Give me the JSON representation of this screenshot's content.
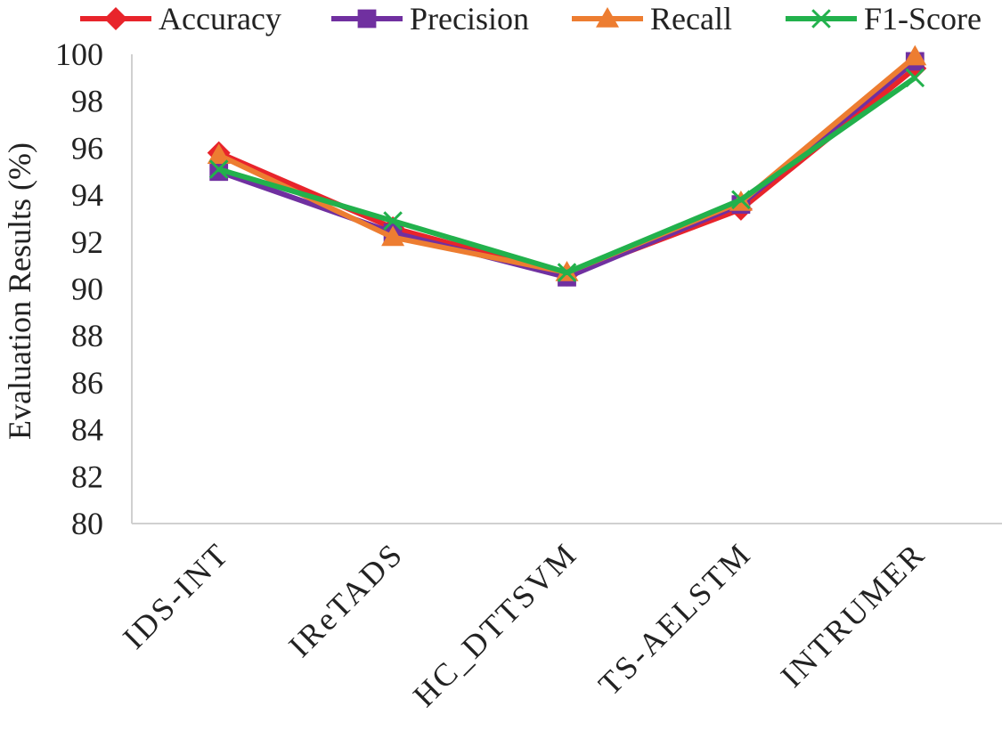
{
  "chart_data": {
    "type": "line",
    "title": "",
    "xlabel": "",
    "ylabel": "Evaluation Results (%)",
    "ylim": [
      80,
      100
    ],
    "yticks": [
      80,
      82,
      84,
      86,
      88,
      90,
      92,
      94,
      96,
      98,
      100
    ],
    "grid": false,
    "legend_position": "top",
    "categories": [
      "IDS-INT",
      "IReTADS",
      "HC_DTTSVM",
      "TS-AELSTM",
      "INTRUMER"
    ],
    "series": [
      {
        "name": "Accuracy",
        "color": "#e8242b",
        "marker": "diamond",
        "values": [
          95.8,
          92.6,
          90.6,
          93.4,
          99.4
        ]
      },
      {
        "name": "Precision",
        "color": "#7030a0",
        "marker": "square",
        "values": [
          95.0,
          92.4,
          90.5,
          93.6,
          99.7
        ]
      },
      {
        "name": "Recall",
        "color": "#ed7d31",
        "marker": "triangle",
        "values": [
          95.7,
          92.2,
          90.7,
          93.7,
          99.9
        ]
      },
      {
        "name": "F1-Score",
        "color": "#22b14c",
        "marker": "x",
        "values": [
          95.1,
          92.9,
          90.7,
          93.8,
          99.0
        ]
      }
    ]
  }
}
